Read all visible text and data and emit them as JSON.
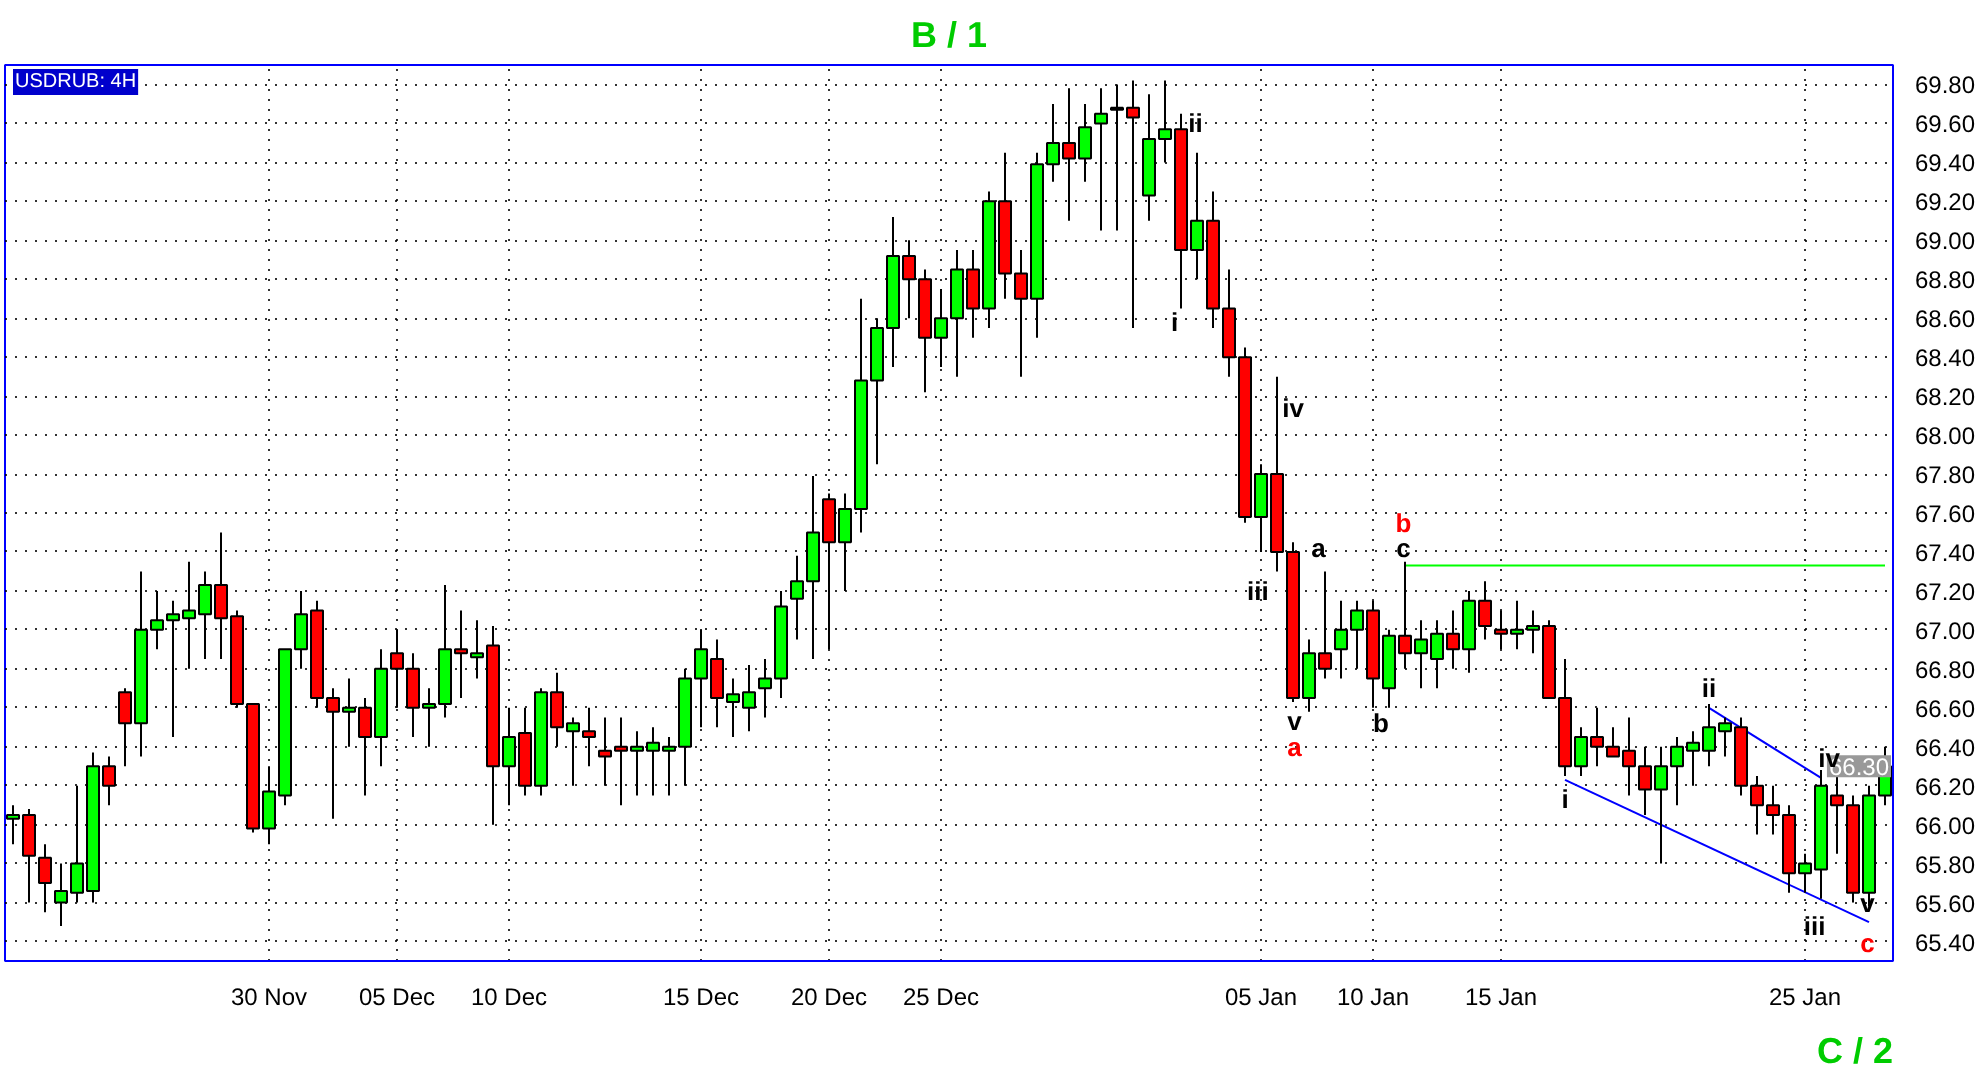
{
  "chart_data": {
    "type": "candlestick",
    "title": "B / 1",
    "annotations": [
      "USDRUB: 4H",
      "C / 2",
      {
        "text": "66.30",
        "y": 66.3
      },
      "ii",
      "i",
      "iv",
      "iii",
      "a",
      "v",
      "a",
      "b",
      "c",
      "b",
      "i",
      "ii",
      "iv",
      "iii",
      "v",
      "c"
    ],
    "colors": [
      "#00ff00",
      "#ff0000",
      "#ff0000",
      "#00ff00",
      "#00ff00",
      "#00ff00",
      "#ff0000",
      "#ff0000",
      "#00ff00",
      "#00ff00",
      "#00ff00",
      "#00ff00",
      "#00ff00",
      "#ff0000",
      "#ff0000",
      "#ff0000",
      "#00ff00",
      "#00ff00",
      "#00ff00",
      "#ff0000",
      "#ff0000",
      "#00ff00",
      "#ff0000",
      "#00ff00",
      "#ff0000",
      "#ff0000",
      "#00ff00",
      "#00ff00",
      "#ff0000",
      "#00ff00",
      "#ff0000",
      "#00ff00",
      "#ff0000",
      "#00ff00",
      "#ff0000",
      "#00ff00",
      "#ff0000",
      "#ff0000",
      "#ff0000",
      "#00ff00",
      "#00ff00",
      "#00ff00",
      "#00ff00",
      "#00ff00",
      "#ff0000",
      "#00ff00",
      "#00ff00",
      "#00ff00",
      "#00ff00",
      "#00ff00",
      "#00ff00",
      "#ff0000",
      "#00ff00",
      "#00ff00",
      "#00ff00",
      "#00ff00",
      "#ff0000",
      "#ff0000",
      "#00ff00",
      "#00ff00",
      "#ff0000",
      "#00ff00",
      "#ff0000",
      "#ff0000",
      "#00ff00",
      "#00ff00",
      "#ff0000",
      "#00ff00",
      "#00ff00",
      "#00ff00",
      "#ff0000",
      "#00ff00",
      "#00ff00",
      "#ff0000",
      "#00ff00",
      "#ff0000",
      "#ff0000",
      "#ff0000",
      "#00ff00",
      "#ff0000",
      "#ff0000",
      "#00ff00",
      "#ff0000",
      "#00ff00",
      "#00ff00",
      "#ff0000",
      "#00ff00",
      "#ff0000",
      "#00ff00",
      "#00ff00",
      "#ff0000",
      "#00ff00",
      "#ff0000",
      "#ff0000",
      "#00ff00",
      "#00ff00",
      "#ff0000",
      "#ff0000",
      "#00ff00",
      "#ff0000",
      "#ff0000",
      "#ff0000",
      "#ff0000",
      "#00ff00",
      "#00ff00",
      "#00ff00",
      "#00ff00",
      "#00ff00",
      "#ff0000",
      "#ff0000",
      "#ff0000",
      "#ff0000",
      "#00ff00",
      "#00ff00",
      "#ff0000",
      "#ff0000",
      "#00ff00",
      "#00ff00"
    ],
    "categories": [
      null,
      null,
      null,
      null,
      null,
      null,
      null,
      null,
      null,
      null,
      null,
      null,
      null,
      null,
      null,
      null,
      "30 Nov",
      null,
      null,
      null,
      null,
      null,
      null,
      null,
      "05 Dec",
      null,
      null,
      null,
      null,
      null,
      null,
      "10 Dec",
      null,
      null,
      null,
      null,
      null,
      null,
      null,
      null,
      null,
      null,
      null,
      "15 Dec",
      null,
      null,
      null,
      null,
      null,
      null,
      null,
      "20 Dec",
      null,
      null,
      null,
      null,
      null,
      null,
      "25 Dec",
      null,
      null,
      null,
      null,
      null,
      null,
      null,
      null,
      null,
      null,
      null,
      null,
      null,
      null,
      null,
      null,
      null,
      null,
      null,
      "05 Jan",
      null,
      null,
      null,
      null,
      null,
      null,
      "10 Jan",
      null,
      null,
      null,
      null,
      null,
      null,
      null,
      "15 Jan",
      null,
      null,
      null,
      null,
      null,
      null,
      null,
      null,
      null,
      null,
      null,
      null,
      null,
      null,
      null,
      null,
      null,
      null,
      "25 Jan",
      null,
      null,
      null,
      null,
      null
    ],
    "ohlc": [
      [
        66.03,
        66.1,
        65.9,
        66.05
      ],
      [
        66.05,
        66.08,
        65.6,
        65.84
      ],
      [
        65.83,
        65.9,
        65.55,
        65.7
      ],
      [
        65.6,
        65.8,
        65.48,
        65.66
      ],
      [
        65.65,
        66.2,
        65.6,
        65.8
      ],
      [
        65.66,
        66.37,
        65.6,
        66.3
      ],
      [
        66.3,
        66.35,
        66.1,
        66.2
      ],
      [
        66.68,
        66.7,
        66.3,
        66.52
      ],
      [
        66.52,
        67.3,
        66.35,
        67.0
      ],
      [
        67.0,
        67.2,
        66.9,
        67.05
      ],
      [
        67.05,
        67.15,
        66.45,
        67.08
      ],
      [
        67.06,
        67.35,
        66.8,
        67.1
      ],
      [
        67.08,
        67.3,
        66.85,
        67.23
      ],
      [
        67.23,
        67.5,
        66.85,
        67.06
      ],
      [
        67.07,
        67.1,
        66.6,
        66.62
      ],
      [
        66.62,
        66.62,
        65.96,
        65.98
      ],
      [
        65.98,
        66.3,
        65.9,
        66.17
      ],
      [
        66.15,
        66.9,
        66.1,
        66.9
      ],
      [
        66.9,
        67.2,
        66.8,
        67.08
      ],
      [
        67.1,
        67.15,
        66.6,
        66.65
      ],
      [
        66.65,
        66.7,
        66.03,
        66.58
      ],
      [
        66.58,
        66.75,
        66.4,
        66.6
      ],
      [
        66.6,
        66.65,
        66.15,
        66.45
      ],
      [
        66.45,
        66.9,
        66.3,
        66.8
      ],
      [
        66.88,
        67.0,
        66.6,
        66.8
      ],
      [
        66.8,
        66.88,
        66.45,
        66.6
      ],
      [
        66.6,
        66.7,
        66.4,
        66.62
      ],
      [
        66.62,
        67.23,
        66.55,
        66.9
      ],
      [
        66.9,
        67.1,
        66.65,
        66.88
      ],
      [
        66.86,
        67.05,
        66.75,
        66.88
      ],
      [
        66.92,
        67.02,
        66.0,
        66.3
      ],
      [
        66.3,
        66.6,
        66.1,
        66.45
      ],
      [
        66.47,
        66.6,
        66.15,
        66.2
      ],
      [
        66.2,
        66.7,
        66.15,
        66.68
      ],
      [
        66.68,
        66.78,
        66.4,
        66.5
      ],
      [
        66.48,
        66.55,
        66.2,
        66.52
      ],
      [
        66.48,
        66.6,
        66.3,
        66.45
      ],
      [
        66.38,
        66.55,
        66.2,
        66.35
      ],
      [
        66.4,
        66.55,
        66.1,
        66.38
      ],
      [
        66.38,
        66.48,
        66.15,
        66.4
      ],
      [
        66.38,
        66.5,
        66.15,
        66.42
      ],
      [
        66.38,
        66.45,
        66.15,
        66.4
      ],
      [
        66.4,
        66.8,
        66.2,
        66.75
      ],
      [
        66.75,
        67.0,
        66.5,
        66.9
      ],
      [
        66.85,
        66.95,
        66.5,
        66.65
      ],
      [
        66.63,
        66.75,
        66.45,
        66.67
      ],
      [
        66.6,
        66.82,
        66.48,
        66.68
      ],
      [
        66.7,
        66.85,
        66.55,
        66.75
      ],
      [
        66.75,
        67.2,
        66.65,
        67.12
      ],
      [
        67.16,
        67.38,
        66.95,
        67.25
      ],
      [
        67.25,
        67.79,
        66.85,
        67.5
      ],
      [
        67.67,
        67.7,
        66.9,
        67.45
      ],
      [
        67.45,
        67.7,
        67.2,
        67.62
      ],
      [
        67.62,
        68.7,
        67.5,
        68.28
      ],
      [
        68.28,
        68.6,
        67.85,
        68.55
      ],
      [
        68.55,
        69.12,
        68.35,
        68.92
      ],
      [
        68.92,
        69.0,
        68.6,
        68.8
      ],
      [
        68.8,
        68.85,
        68.22,
        68.5
      ],
      [
        68.5,
        68.75,
        68.35,
        68.6
      ],
      [
        68.6,
        68.95,
        68.3,
        68.85
      ],
      [
        68.85,
        68.95,
        68.5,
        68.65
      ],
      [
        68.65,
        69.25,
        68.55,
        69.2
      ],
      [
        69.2,
        69.45,
        68.7,
        68.83
      ],
      [
        68.83,
        68.95,
        68.3,
        68.7
      ],
      [
        68.7,
        69.45,
        68.5,
        69.39
      ],
      [
        69.39,
        69.7,
        69.3,
        69.5
      ],
      [
        69.5,
        69.78,
        69.1,
        69.42
      ],
      [
        69.42,
        69.7,
        69.3,
        69.58
      ],
      [
        69.6,
        69.78,
        69.05,
        69.65
      ],
      [
        69.67,
        69.8,
        69.05,
        69.68
      ],
      [
        69.68,
        69.82,
        68.55,
        69.63
      ],
      [
        69.23,
        69.75,
        69.1,
        69.52
      ],
      [
        69.52,
        69.82,
        69.4,
        69.57
      ],
      [
        69.57,
        69.65,
        68.65,
        68.95
      ],
      [
        68.95,
        69.45,
        68.8,
        69.1
      ],
      [
        69.1,
        69.25,
        68.55,
        68.65
      ],
      [
        68.65,
        68.85,
        68.3,
        68.4
      ],
      [
        68.4,
        68.45,
        67.55,
        67.58
      ],
      [
        67.58,
        67.85,
        67.4,
        67.8
      ],
      [
        67.8,
        68.3,
        67.3,
        67.4
      ],
      [
        67.4,
        67.45,
        66.63,
        66.65
      ],
      [
        66.65,
        66.95,
        66.58,
        66.88
      ],
      [
        66.88,
        67.3,
        66.75,
        66.8
      ],
      [
        66.9,
        67.15,
        66.75,
        67.0
      ],
      [
        67.0,
        67.15,
        66.8,
        67.1
      ],
      [
        67.1,
        67.15,
        66.6,
        66.75
      ],
      [
        66.7,
        67.0,
        66.6,
        66.97
      ],
      [
        66.97,
        67.35,
        66.8,
        66.88
      ],
      [
        66.88,
        67.05,
        66.7,
        66.95
      ],
      [
        66.85,
        67.05,
        66.7,
        66.98
      ],
      [
        66.98,
        67.1,
        66.8,
        66.9
      ],
      [
        66.9,
        67.2,
        66.78,
        67.15
      ],
      [
        67.15,
        67.25,
        66.95,
        67.02
      ],
      [
        67.0,
        67.1,
        66.9,
        66.98
      ],
      [
        66.98,
        67.15,
        66.9,
        67.0
      ],
      [
        67.0,
        67.1,
        66.88,
        67.02
      ],
      [
        67.02,
        67.05,
        66.65,
        66.65
      ],
      [
        66.65,
        66.85,
        66.25,
        66.3
      ],
      [
        66.3,
        66.5,
        66.25,
        66.45
      ],
      [
        66.45,
        66.6,
        66.3,
        66.4
      ],
      [
        66.4,
        66.5,
        66.35,
        66.35
      ],
      [
        66.38,
        66.55,
        66.15,
        66.3
      ],
      [
        66.3,
        66.4,
        66.05,
        66.18
      ],
      [
        66.18,
        66.4,
        65.8,
        66.3
      ],
      [
        66.3,
        66.45,
        66.1,
        66.4
      ],
      [
        66.38,
        66.48,
        66.2,
        66.42
      ],
      [
        66.38,
        66.62,
        66.3,
        66.5
      ],
      [
        66.48,
        66.55,
        66.35,
        66.52
      ],
      [
        66.5,
        66.55,
        66.15,
        66.2
      ],
      [
        66.2,
        66.25,
        65.95,
        66.1
      ],
      [
        66.1,
        66.2,
        65.95,
        66.05
      ],
      [
        66.05,
        66.1,
        65.65,
        65.75
      ],
      [
        65.75,
        65.85,
        65.65,
        65.8
      ],
      [
        65.77,
        66.28,
        65.62,
        66.2
      ],
      [
        66.15,
        66.25,
        65.85,
        66.1
      ],
      [
        66.1,
        66.15,
        65.6,
        65.65
      ],
      [
        65.65,
        66.2,
        65.58,
        66.15
      ],
      [
        66.15,
        66.4,
        66.1,
        66.3
      ]
    ],
    "series": [
      {
        "type": "line",
        "color": "#00ff00",
        "values": [
          null,
          null,
          null,
          null,
          null,
          null,
          null,
          null,
          null,
          null,
          null,
          null,
          null,
          null,
          null,
          null,
          null,
          null,
          null,
          null,
          null,
          null,
          null,
          null,
          null,
          null,
          null,
          null,
          null,
          null,
          null,
          null,
          null,
          null,
          null,
          null,
          null,
          null,
          null,
          null,
          null,
          null,
          null,
          null,
          null,
          null,
          null,
          null,
          null,
          null,
          null,
          null,
          null,
          null,
          null,
          null,
          null,
          null,
          null,
          null,
          null,
          null,
          null,
          null,
          null,
          null,
          null,
          null,
          null,
          null,
          null,
          null,
          null,
          null,
          null,
          null,
          null,
          null,
          null,
          null,
          null,
          null,
          null,
          null,
          null,
          null,
          null,
          67.33,
          null,
          null,
          null,
          null,
          null,
          null,
          null,
          null,
          null,
          null,
          null,
          null,
          null,
          null,
          null,
          null,
          null,
          null,
          null,
          null,
          null,
          null,
          null,
          null,
          null,
          null,
          null,
          null,
          null,
          67.33
        ]
      },
      {
        "type": "line",
        "color": "#0000ff",
        "values": [
          null,
          null,
          null,
          null,
          null,
          null,
          null,
          null,
          null,
          null,
          null,
          null,
          null,
          null,
          null,
          null,
          null,
          null,
          null,
          null,
          null,
          null,
          null,
          null,
          null,
          null,
          null,
          null,
          null,
          null,
          null,
          null,
          null,
          null,
          null,
          null,
          null,
          null,
          null,
          null,
          null,
          null,
          null,
          null,
          null,
          null,
          null,
          null,
          null,
          null,
          null,
          null,
          null,
          null,
          null,
          null,
          null,
          null,
          null,
          null,
          null,
          null,
          null,
          null,
          null,
          null,
          null,
          null,
          null,
          null,
          null,
          null,
          null,
          null,
          null,
          null,
          null,
          null,
          null,
          null,
          null,
          null,
          null,
          null,
          null,
          null,
          null,
          null,
          null,
          null,
          null,
          null,
          null,
          null,
          null,
          null,
          null,
          null,
          null,
          null,
          null,
          null,
          null,
          null,
          null,
          null,
          66.6,
          null,
          null,
          null,
          null,
          null,
          null,
          66.24,
          null,
          null,
          null,
          null
        ]
      },
      {
        "type": "line",
        "color": "#0000ff",
        "values": [
          null,
          null,
          null,
          null,
          null,
          null,
          null,
          null,
          null,
          null,
          null,
          null,
          null,
          null,
          null,
          null,
          null,
          null,
          null,
          null,
          null,
          null,
          null,
          null,
          null,
          null,
          null,
          null,
          null,
          null,
          null,
          null,
          null,
          null,
          null,
          null,
          null,
          null,
          null,
          null,
          null,
          null,
          null,
          null,
          null,
          null,
          null,
          null,
          null,
          null,
          null,
          null,
          null,
          null,
          null,
          null,
          null,
          null,
          null,
          null,
          null,
          null,
          null,
          null,
          null,
          null,
          null,
          null,
          null,
          null,
          null,
          null,
          null,
          null,
          null,
          null,
          null,
          null,
          null,
          null,
          null,
          null,
          null,
          null,
          null,
          null,
          null,
          null,
          null,
          null,
          null,
          null,
          null,
          null,
          null,
          null,
          null,
          66.23,
          null,
          null,
          null,
          null,
          null,
          null,
          null,
          null,
          null,
          null,
          null,
          null,
          null,
          null,
          null,
          null,
          null,
          null,
          65.5,
          null
        ]
      }
    ],
    "ylim": [
      65.3,
      69.9
    ],
    "yticks": [
      {
        "value": 65.4,
        "label": "65.40"
      },
      {
        "value": 65.6,
        "label": "65.60"
      },
      {
        "value": 65.8,
        "label": "65.80"
      },
      {
        "value": 66.0,
        "label": "66.00"
      },
      {
        "value": 66.2,
        "label": "66.20"
      },
      {
        "value": 66.4,
        "label": "66.40"
      },
      {
        "value": 66.6,
        "label": "66.60"
      },
      {
        "value": 66.8,
        "label": "66.80"
      },
      {
        "value": 67.0,
        "label": "67.00"
      },
      {
        "value": 67.2,
        "label": "67.20"
      },
      {
        "value": 67.4,
        "label": "67.40"
      },
      {
        "value": 67.6,
        "label": "67.60"
      },
      {
        "value": 67.8,
        "label": "67.80"
      },
      {
        "value": 68.0,
        "label": "68.00"
      },
      {
        "value": 68.2,
        "label": "68.20"
      },
      {
        "value": 68.4,
        "label": "68.40"
      },
      {
        "value": 68.6,
        "label": "68.60"
      },
      {
        "value": 68.8,
        "label": "68.80"
      },
      {
        "value": 69.0,
        "label": "69.00"
      },
      {
        "value": 69.2,
        "label": "69.20"
      },
      {
        "value": 69.4,
        "label": "69.40"
      },
      {
        "value": 69.6,
        "label": "69.60"
      },
      {
        "value": 69.8,
        "label": "69.80"
      }
    ],
    "grid": true
  }
}
